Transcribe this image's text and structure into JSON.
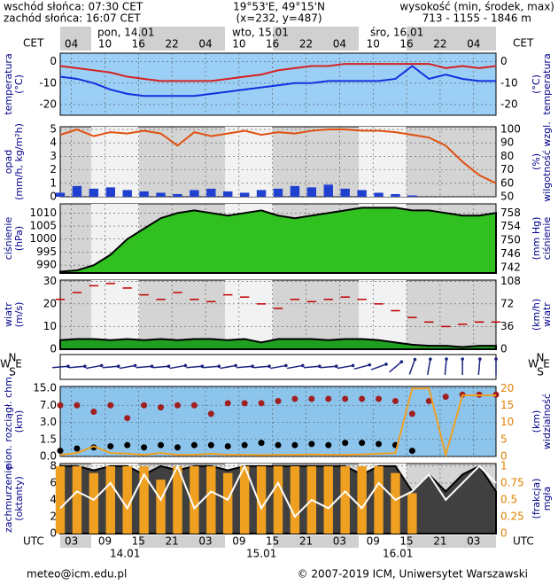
{
  "header": {
    "sunrise": "wschód słońca: 07:30 CET",
    "sunset": "zachód słońca: 16:07 CET",
    "coords": "19°53'E, 49°15'N",
    "grid": "(x=232, y=487)",
    "height_label": "wysokość (min, środek, max)",
    "heights": "713 - 1155 - 1846 m"
  },
  "time_axis": {
    "xlim": [
      1,
      79
    ],
    "top_unit": "CET",
    "bottom_unit": "UTC",
    "x": [
      1,
      4,
      7,
      10,
      13,
      16,
      19,
      22,
      25,
      28,
      31,
      34,
      37,
      40,
      43,
      46,
      49,
      52,
      55,
      58,
      61,
      64,
      67,
      70,
      73,
      76,
      79
    ],
    "cet_ticks": [
      {
        "value": 3,
        "label": "04"
      },
      {
        "value": 9,
        "label": "10"
      },
      {
        "value": 15,
        "label": "16"
      },
      {
        "value": 21,
        "label": "22"
      },
      {
        "value": 27,
        "label": "04"
      },
      {
        "value": 33,
        "label": "10"
      },
      {
        "value": 39,
        "label": "16"
      },
      {
        "value": 45,
        "label": "22"
      },
      {
        "value": 51,
        "label": "04"
      },
      {
        "value": 57,
        "label": "10"
      },
      {
        "value": 63,
        "label": "16"
      },
      {
        "value": 69,
        "label": "22"
      },
      {
        "value": 75,
        "label": "04"
      }
    ],
    "utc_ticks": [
      {
        "value": 3,
        "label": "03"
      },
      {
        "value": 9,
        "label": "09"
      },
      {
        "value": 15,
        "label": "15"
      },
      {
        "value": 21,
        "label": "21"
      },
      {
        "value": 27,
        "label": "03"
      },
      {
        "value": 33,
        "label": "09"
      },
      {
        "value": 39,
        "label": "15"
      },
      {
        "value": 45,
        "label": "21"
      },
      {
        "value": 51,
        "label": "03"
      },
      {
        "value": 57,
        "label": "09"
      },
      {
        "value": 63,
        "label": "15"
      },
      {
        "value": 69,
        "label": "21"
      },
      {
        "value": 75,
        "label": "03"
      }
    ],
    "dates_top": [
      "pon, 14.01",
      "wto, 15.01",
      "śro, 16.01"
    ],
    "dates_bottom": [
      "14.01",
      "15.01",
      "16.01"
    ]
  },
  "chart_data": [
    {
      "type": "line",
      "ylabel": [
        "temperatura",
        "(°C)"
      ],
      "y2label": [
        "(°C)",
        "temperatura"
      ],
      "ylim": [
        -25,
        4
      ],
      "yticks": [
        0,
        -10,
        -20
      ],
      "y2lim": [
        -25,
        4
      ],
      "y2ticks": [
        0,
        -10,
        -20
      ],
      "series": [
        {
          "mark": "line",
          "color": "#d42020",
          "values": [
            -2,
            -3,
            -4,
            -5,
            -7,
            -8,
            -9,
            -9,
            -9,
            -9,
            -8,
            -7,
            -6,
            -4,
            -3,
            -2,
            -2,
            -1,
            -1,
            -1,
            -1,
            -1,
            -1,
            -3,
            -2,
            -3,
            -2
          ]
        },
        {
          "mark": "line",
          "color": "#1030e0",
          "values": [
            -7,
            -8,
            -10,
            -13,
            -15,
            -16,
            -16,
            -16,
            -16,
            -15,
            -14,
            -13,
            -12,
            -11,
            -10,
            -10,
            -9,
            -9,
            -9,
            -9,
            -8,
            -2,
            -8,
            -6,
            -8,
            -9,
            -9
          ]
        }
      ]
    },
    {
      "type": "line",
      "ylabel": [
        "opad",
        "(mm/h, kg/m²h)"
      ],
      "y2label": [
        "(%)",
        "wilgotność wzgl."
      ],
      "ylim": [
        0,
        5.2
      ],
      "yticks": [
        0,
        1,
        2,
        3,
        4,
        5
      ],
      "y2lim": [
        50,
        102
      ],
      "y2ticks": [
        50,
        60,
        70,
        80,
        90,
        100
      ],
      "series": [
        {
          "mark": "bar",
          "color": "#2040d0",
          "values": [
            0.3,
            0.8,
            0.6,
            0.7,
            0.5,
            0.4,
            0.3,
            0.2,
            0.5,
            0.6,
            0.4,
            0.3,
            0.5,
            0.6,
            0.8,
            0.7,
            0.9,
            0.6,
            0.5,
            0.3,
            0.2,
            0.1,
            0,
            0,
            0,
            0,
            0
          ]
        },
        {
          "mark": "line",
          "color": "#e05010",
          "axis": "y2",
          "values": [
            96,
            100,
            95,
            98,
            97,
            99,
            97,
            88,
            98,
            95,
            97,
            99,
            96,
            98,
            97,
            99,
            100,
            100,
            99,
            99,
            98,
            96,
            94,
            88,
            76,
            66,
            60
          ]
        }
      ]
    },
    {
      "type": "line",
      "ylabel": [
        "ciśnienie",
        "(hPa)"
      ],
      "y2label": [
        "(mm Hg)",
        "ciśnienie"
      ],
      "ylim": [
        987,
        1013.5
      ],
      "yticks": [
        990,
        995,
        1000,
        1005,
        1010
      ],
      "y2lim": [
        740.4,
        760.7
      ],
      "y2ticks": [
        742,
        746,
        750,
        754,
        758
      ],
      "series": [
        {
          "mark": "area",
          "color": "#30c020",
          "values": [
            987.5,
            988,
            990,
            994,
            1000,
            1004,
            1008,
            1010,
            1011,
            1010,
            1009,
            1010,
            1011,
            1009,
            1008,
            1009,
            1010,
            1011,
            1012,
            1012,
            1012,
            1011,
            1011,
            1010,
            1009,
            1009,
            1010
          ]
        }
      ]
    },
    {
      "type": "line",
      "ylabel": [
        "wiatr",
        "(m/s)"
      ],
      "y2label": [
        "(km/h)",
        "wiatr"
      ],
      "ylim": [
        0,
        30.5
      ],
      "yticks": [
        0,
        10,
        20,
        30
      ],
      "y2lim": [
        0,
        109.8
      ],
      "y2ticks": [
        0,
        36,
        72,
        108
      ],
      "series": [
        {
          "mark": "area",
          "color": "#20a020",
          "values": [
            4,
            4.5,
            4.5,
            4,
            4.5,
            4,
            4.5,
            4,
            4.5,
            4.5,
            4,
            4.5,
            3,
            4.5,
            4.5,
            4.5,
            4,
            4.5,
            4.5,
            4,
            3,
            2,
            1.5,
            1.5,
            1,
            1.5,
            1.5
          ]
        },
        {
          "mark": "dash",
          "color": "#c00000",
          "values": [
            22,
            25,
            28,
            29,
            27,
            24,
            22,
            25,
            22,
            21,
            24,
            23,
            20,
            18,
            22,
            21,
            22,
            23,
            22,
            20,
            17,
            14,
            12,
            10,
            11,
            12,
            12
          ]
        }
      ]
    },
    {
      "type": "arrows",
      "compass": [
        "N",
        "W",
        "E",
        "S"
      ],
      "series": [
        {
          "color": "#1a237e",
          "values": [
            265,
            265,
            260,
            265,
            260,
            265,
            265,
            260,
            265,
            265,
            260,
            265,
            265,
            260,
            260,
            265,
            265,
            260,
            255,
            250,
            230,
            200,
            190,
            185,
            180,
            185,
            180
          ]
        }
      ]
    },
    {
      "type": "line",
      "yscale": "piecewise",
      "ylabel": [
        "pion. rozciągł. chm.",
        "(km)"
      ],
      "y2label": [
        "(km)",
        "widzialność"
      ],
      "ylim": [
        0,
        15
      ],
      "yticks": [
        {
          "value": 0,
          "label": "0.0"
        },
        {
          "value": 1.5,
          "label": "1.5"
        },
        {
          "value": 3,
          "label": "3.0"
        },
        {
          "value": 7,
          "label": "7.0"
        },
        {
          "value": 15,
          "label": "15.0"
        }
      ],
      "y2lim": [
        0,
        20.6
      ],
      "y2ticks": [
        0,
        5,
        10,
        15,
        20
      ],
      "series": [
        {
          "mark": "dots",
          "color": "#a02020",
          "values": [
            7,
            7,
            5.5,
            7,
            4,
            7,
            6.5,
            7,
            7,
            5,
            8,
            8,
            8,
            9,
            10,
            10,
            10,
            10,
            10,
            10,
            9,
            5,
            9,
            11,
            12,
            12,
            12
          ]
        },
        {
          "mark": "dots",
          "color": "#000000",
          "values": [
            0.5,
            0.7,
            0.8,
            0.9,
            1,
            0.8,
            1,
            0.8,
            1,
            1,
            0.9,
            1,
            1.2,
            1,
            1,
            1.1,
            1,
            1.2,
            1.2,
            1.1,
            1,
            0.5,
            null,
            null,
            null,
            null,
            null
          ]
        },
        {
          "mark": "line",
          "color": "#f0a020",
          "axis": "y2",
          "values": [
            0.5,
            1,
            3,
            1,
            0.8,
            0.5,
            1,
            0.5,
            0.5,
            0.8,
            0.5,
            0.5,
            0.4,
            0.5,
            0.5,
            0.6,
            0.5,
            0.5,
            0.6,
            0.8,
            1,
            20,
            20,
            0.5,
            18,
            18,
            18
          ]
        }
      ]
    },
    {
      "type": "line",
      "ylabel": [
        "zachmurzenie",
        "(oktanty)"
      ],
      "y2label": [
        "(frakcja)",
        "mgła"
      ],
      "ylim": [
        0,
        8.3
      ],
      "yticks": [
        0,
        2,
        4,
        6,
        8
      ],
      "y2lim": [
        0,
        1.04
      ],
      "y2ticks": [
        0,
        0.25,
        0.5,
        0.75,
        1
      ],
      "series": [
        {
          "mark": "area",
          "color": "#404040",
          "values": [
            8,
            8,
            7.5,
            8,
            8,
            7,
            8,
            7.5,
            8,
            8,
            7.5,
            8,
            8,
            8,
            8,
            8,
            8,
            8,
            7,
            8,
            8,
            5,
            7,
            5,
            7,
            8,
            5
          ]
        },
        {
          "mark": "bar",
          "color": "#f0a020",
          "axis": "y2",
          "values": [
            1,
            1,
            0.9,
            1,
            1,
            1,
            0.8,
            1,
            1,
            1,
            0.9,
            1,
            1,
            1,
            1,
            1,
            1,
            1,
            1,
            1,
            0.9,
            0.6,
            0,
            0,
            0,
            0,
            0
          ]
        },
        {
          "mark": "line",
          "color": "#ffffff",
          "values": [
            3,
            5,
            4,
            6,
            3,
            7,
            4,
            8,
            3,
            5,
            4,
            8,
            3,
            6,
            2,
            4,
            3,
            5,
            3,
            6,
            4,
            5,
            7,
            4,
            6,
            8,
            6
          ]
        }
      ]
    }
  ],
  "footer": {
    "email": "meteo@icm.edu.pl",
    "copyright": "© 2007-2019 ICM, Uniwersytet Warszawski"
  }
}
